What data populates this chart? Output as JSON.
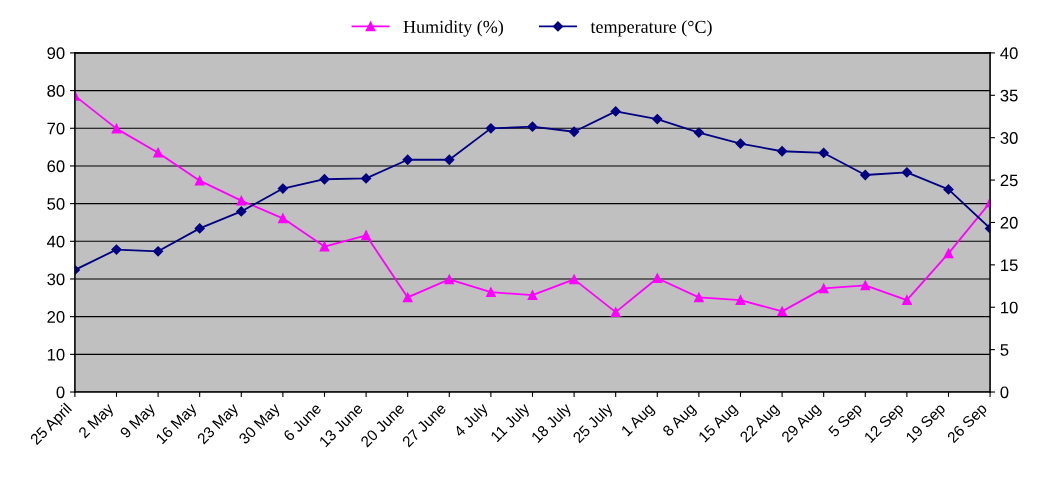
{
  "chart_data": {
    "type": "line",
    "categories": [
      "25 April",
      "2 May",
      "9 May",
      "16 May",
      "23 May",
      "30 May",
      "6 June",
      "13 June",
      "20 June",
      "27 June",
      "4 July",
      "11 July",
      "18 July",
      "25 July",
      "1 Aug",
      "8 Aug",
      "15 Aug",
      "22 Aug",
      "29 Aug",
      "5 Sep",
      "12 Sep",
      "19 Sep",
      "26 Sep"
    ],
    "series": [
      {
        "name": "Humidity (%)",
        "color": "#ff00ff",
        "marker": "triangle",
        "values": [
          78.6,
          69.9,
          63.5,
          56.1,
          50.8,
          46.1,
          38.6,
          41.6,
          25.1,
          29.9,
          26.5,
          25.7,
          29.9,
          21.2,
          30.2,
          25.1,
          24.4,
          21.4,
          27.5,
          28.3,
          24.4,
          36.8,
          50.3
        ]
      },
      {
        "name": "temperature (°C)",
        "color": "#000080",
        "marker": "diamond",
        "axis": "y2",
        "values": [
          14.4,
          16.8,
          16.6,
          19.3,
          21.3,
          24.0,
          25.1,
          25.2,
          27.4,
          27.4,
          31.1,
          31.3,
          30.7,
          33.1,
          32.2,
          30.6,
          29.3,
          28.4,
          28.2,
          25.6,
          25.9,
          23.9,
          19.3
        ]
      }
    ],
    "ylim": [
      0,
      90
    ],
    "yticks": [
      0,
      10,
      20,
      30,
      40,
      50,
      60,
      70,
      80,
      90
    ],
    "y2lim": [
      0,
      40
    ],
    "y2ticks": [
      0,
      5,
      10,
      15,
      20,
      25,
      30,
      35,
      40
    ],
    "grid": "y",
    "legend": "top"
  }
}
